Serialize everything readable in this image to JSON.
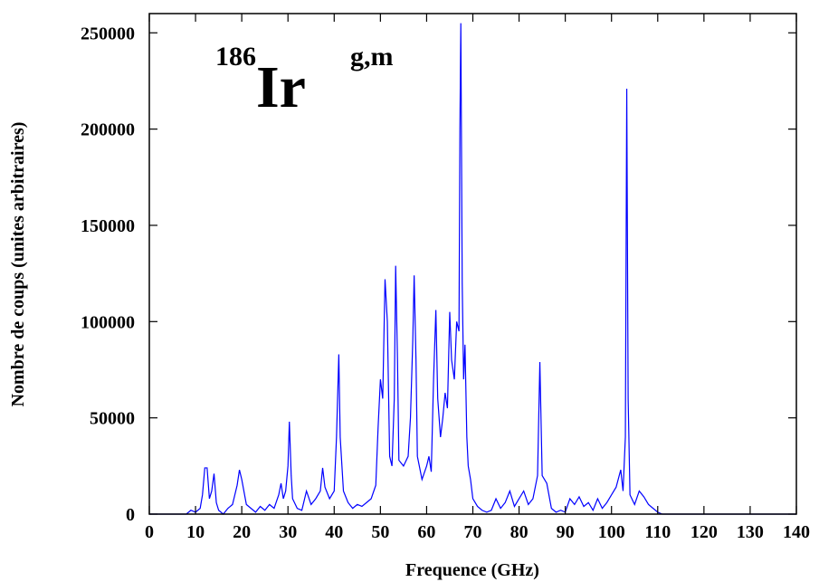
{
  "chart_data": {
    "type": "line",
    "annotation": {
      "mass": "186",
      "element": "Ir",
      "state": "g,m"
    },
    "xlabel": "Frequence (GHz)",
    "ylabel": "Nombre de coups (unites arbitraires)",
    "color": "#0000ff",
    "xlim": [
      0,
      140
    ],
    "xticks": [
      0,
      10,
      20,
      30,
      40,
      50,
      60,
      70,
      80,
      90,
      100,
      110,
      120,
      130,
      140
    ],
    "ylim": [
      0,
      260000
    ],
    "yticks": [
      0,
      50000,
      100000,
      150000,
      200000,
      250000
    ],
    "x": [
      0,
      8,
      9,
      10,
      11,
      11.5,
      12,
      12.5,
      13,
      13.5,
      14,
      14.5,
      15,
      16,
      17,
      18,
      19,
      19.5,
      20,
      21,
      22,
      23,
      24,
      25,
      26,
      27,
      28,
      28.5,
      29,
      29.5,
      30,
      30.3,
      30.7,
      31,
      32,
      33,
      34,
      35,
      36,
      37,
      37.5,
      38,
      39,
      40,
      40.5,
      41,
      41.3,
      42,
      43,
      44,
      45,
      46,
      47,
      48,
      49,
      49.5,
      50,
      50.5,
      51,
      51.5,
      52,
      52.5,
      53,
      53.3,
      53.7,
      54,
      55,
      56,
      56.5,
      57,
      57.3,
      57.7,
      58,
      59,
      60,
      60.5,
      61,
      61.5,
      62,
      62.4,
      63,
      63.5,
      64,
      64.5,
      65,
      65.4,
      66,
      66.5,
      67,
      67.2,
      67.4,
      67.7,
      68,
      68.3,
      68.7,
      69,
      69.5,
      70,
      71,
      72,
      73,
      74,
      75,
      76,
      77,
      78,
      79,
      80,
      81,
      82,
      83,
      84,
      84.5,
      85,
      86,
      87,
      88,
      89,
      90,
      91,
      92,
      93,
      94,
      95,
      96,
      97,
      98,
      99,
      100,
      101,
      102,
      102.5,
      103,
      103.3,
      103.6,
      104,
      105,
      106,
      107,
      108,
      109,
      110,
      111,
      140
    ],
    "values": [
      0,
      0,
      2000,
      1000,
      3000,
      10000,
      24000,
      24000,
      8000,
      12000,
      21000,
      6000,
      2000,
      0,
      3000,
      5000,
      15000,
      23000,
      18000,
      5000,
      3000,
      1000,
      4000,
      2000,
      5000,
      3000,
      10000,
      16000,
      8000,
      12000,
      25000,
      48000,
      20000,
      8000,
      3000,
      2000,
      12000,
      5000,
      8000,
      12000,
      24000,
      14000,
      8000,
      12000,
      40000,
      83000,
      40000,
      12000,
      6000,
      3000,
      5000,
      4000,
      6000,
      8000,
      15000,
      45000,
      70000,
      60000,
      122000,
      100000,
      30000,
      25000,
      60000,
      129000,
      80000,
      28000,
      25000,
      30000,
      50000,
      90000,
      124000,
      80000,
      30000,
      18000,
      25000,
      30000,
      22000,
      70000,
      106000,
      60000,
      40000,
      50000,
      63000,
      55000,
      105000,
      80000,
      70000,
      100000,
      95000,
      200000,
      255000,
      120000,
      70000,
      88000,
      40000,
      25000,
      18000,
      8000,
      4000,
      2000,
      1000,
      2000,
      8000,
      3000,
      6000,
      12000,
      4000,
      8000,
      12000,
      5000,
      8000,
      20000,
      79000,
      20000,
      16000,
      3000,
      1000,
      2000,
      1000,
      8000,
      5000,
      9000,
      4000,
      6000,
      2000,
      8000,
      3000,
      6000,
      10000,
      14000,
      23000,
      12000,
      40000,
      221000,
      60000,
      10000,
      5000,
      12000,
      9000,
      5000,
      3000,
      1000,
      0,
      0
    ]
  }
}
